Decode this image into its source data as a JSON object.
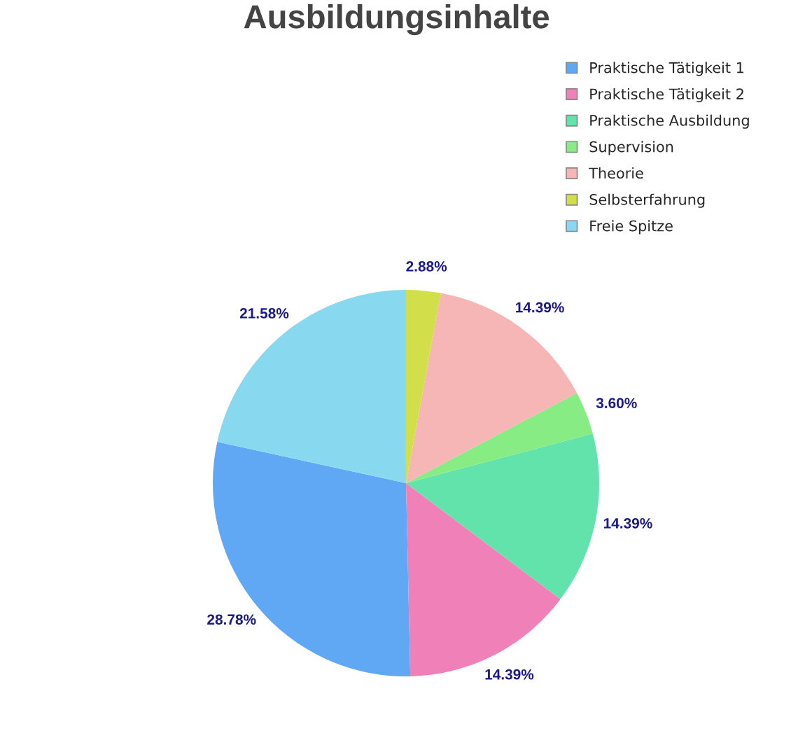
{
  "chart_data": {
    "type": "pie",
    "title": "Ausbildungsinhalte",
    "categories": [
      "Praktische Tätigkeit 1",
      "Praktische Tätigkeit 2",
      "Praktische Ausbildung",
      "Supervision",
      "Theorie",
      "Selbsterfahrung",
      "Freie Spitze"
    ],
    "values": [
      28.78,
      14.39,
      14.39,
      3.6,
      14.39,
      2.88,
      21.58
    ],
    "colors": [
      "#60a8f4",
      "#f080b8",
      "#62e3ab",
      "#88ec84",
      "#f6b6b6",
      "#d3df4a",
      "#88d8f0"
    ],
    "value_labels": [
      "28.78%",
      "14.39%",
      "14.39%",
      "3.60%",
      "14.39%",
      "2.88%",
      "21.58%"
    ],
    "legend": "top right"
  }
}
